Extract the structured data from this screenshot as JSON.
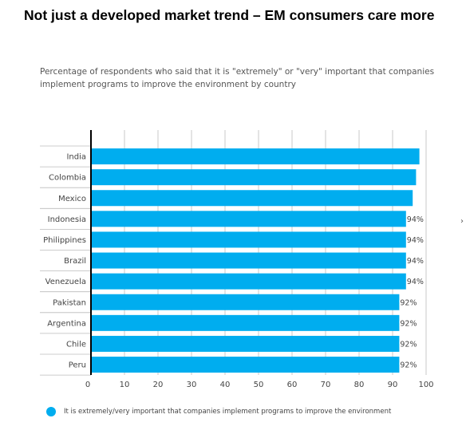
{
  "title": "Not just a developed market trend – EM consumers care more",
  "subtitle": "Percentage of respondents who said that it is \"extremely\" or \"very\" important that companies implement programs to improve the environment by country",
  "legend_label": "It is extremely/very important that companies implement programs to improve the environment",
  "side_mark": "›",
  "colors": {
    "bar": "#00adef",
    "grid": "#bbbbbb",
    "axis": "#000000"
  },
  "chart_data": {
    "type": "bar",
    "orientation": "horizontal",
    "categories": [
      "India",
      "Colombia",
      "Mexico",
      "Indonesia",
      "Philippines",
      "Brazil",
      "Venezuela",
      "Pakistan",
      "Argentina",
      "Chile",
      "Peru"
    ],
    "values": [
      98,
      97,
      96,
      94,
      94,
      94,
      94,
      92,
      92,
      92,
      92
    ],
    "data_labels": [
      "",
      "",
      "",
      "94%",
      "94%",
      "94%",
      "94%",
      "92%",
      "92%",
      "92%",
      "92%"
    ],
    "x_ticks": [
      "0",
      "10",
      "20",
      "30",
      "40",
      "50",
      "60",
      "70",
      "80",
      "90",
      "100"
    ],
    "xlim": [
      0,
      100
    ],
    "grid": true,
    "legend_position": "bottom",
    "series": [
      {
        "name": "It is extremely/very important that companies implement programs to improve the environment",
        "values": [
          98,
          97,
          96,
          94,
          94,
          94,
          94,
          92,
          92,
          92,
          92
        ]
      }
    ]
  }
}
